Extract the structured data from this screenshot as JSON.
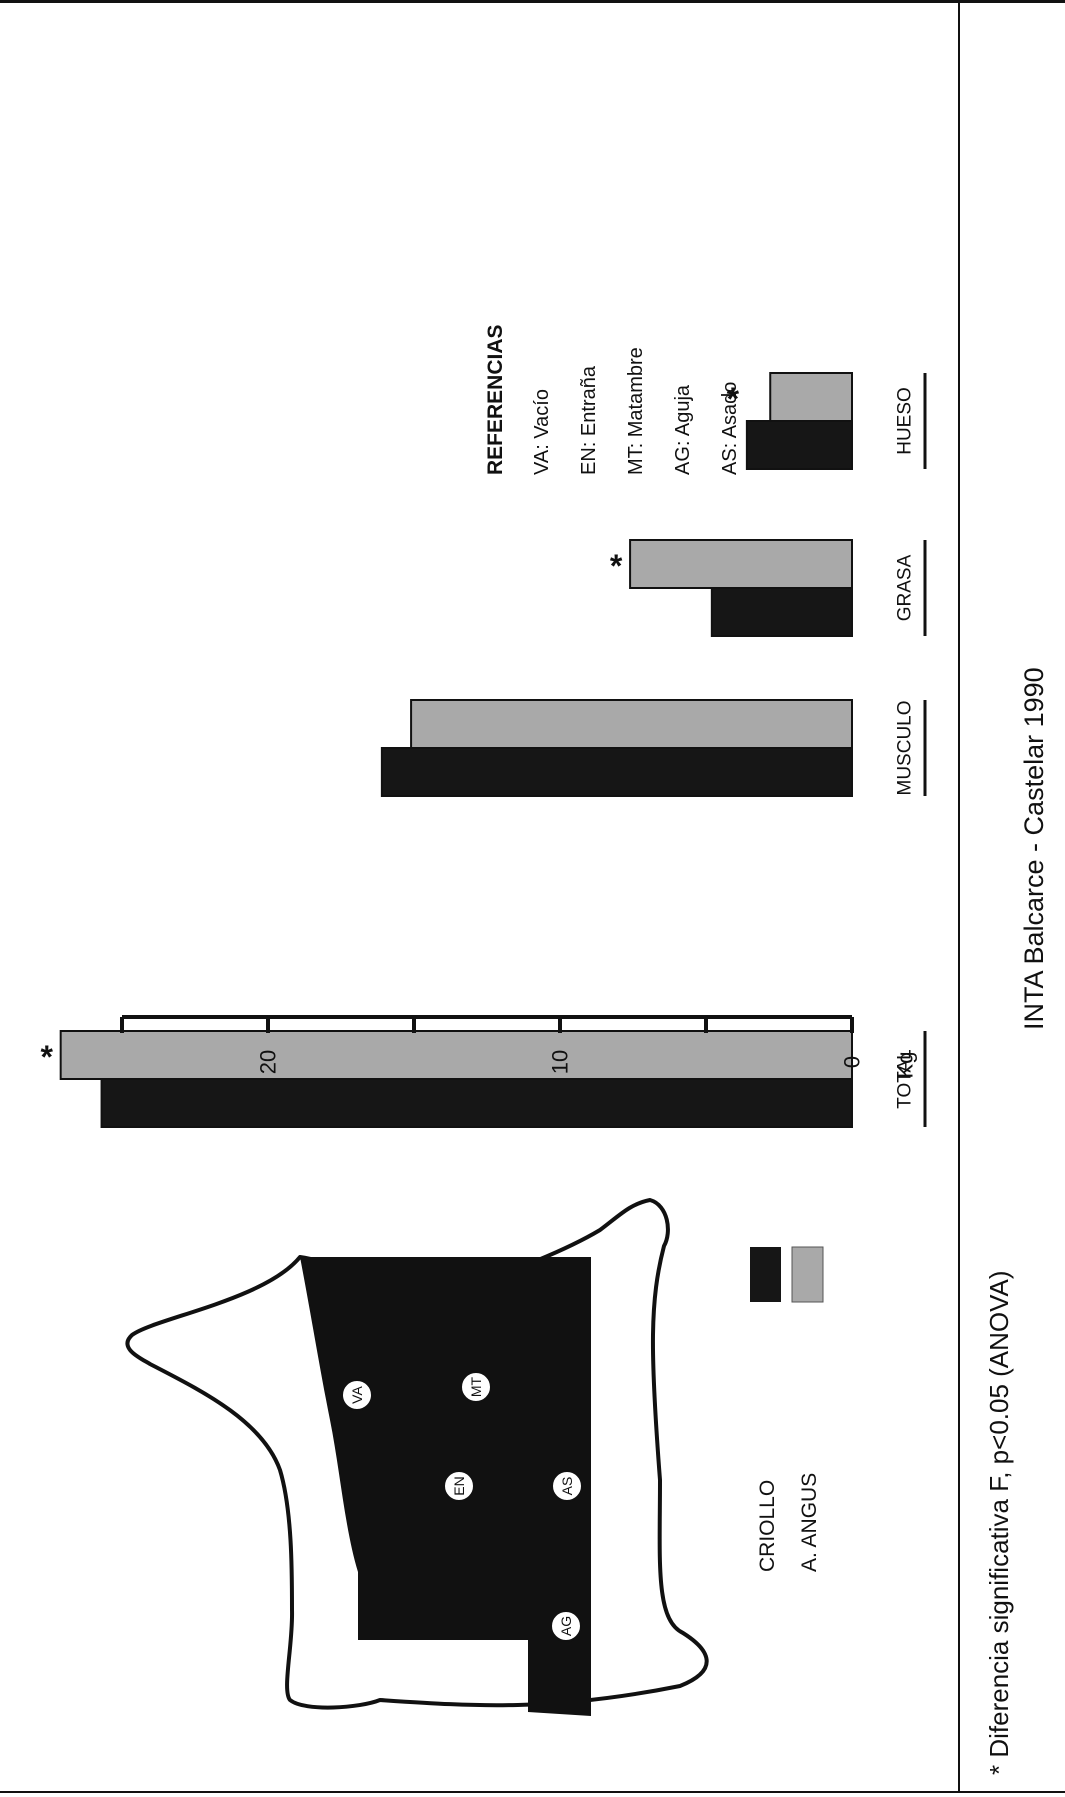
{
  "chart_data": {
    "type": "bar",
    "orientation": "horizontal",
    "categories": [
      "TOTAL",
      "MUSCULO",
      "GRASA",
      "HUESO"
    ],
    "series": [
      {
        "name": "CRIOLLO",
        "color": "#161616",
        "values": [
          25.7,
          16.1,
          4.8,
          3.6
        ]
      },
      {
        "name": "A. ANGUS",
        "color": "#a9a9a9",
        "values": [
          27.1,
          15.1,
          7.6,
          2.8
        ]
      }
    ],
    "significant": [
      true,
      false,
      true,
      true
    ],
    "significance_mark": "*",
    "axis": {
      "label": "Kg",
      "range": [
        0,
        25
      ],
      "major_ticks": [
        0,
        10,
        20
      ],
      "minor_ticks": [
        5,
        15,
        25
      ]
    }
  },
  "references": {
    "title": "REFERENCIAS",
    "items": [
      "VA: Vacío",
      "EN: Entraña",
      "MT: Matambre",
      "AG: Aguja",
      "AS: Asado"
    ]
  },
  "diagram": {
    "labels": [
      "VA",
      "EN",
      "MT",
      "AG",
      "AS"
    ]
  },
  "legend": {
    "items": [
      {
        "label": "CRIOLLO",
        "color": "#161616"
      },
      {
        "label": "A. ANGUS",
        "color": "#a9a9a9"
      }
    ]
  },
  "footnote": "* Diferencia significativa F, p<0.05 (ANOVA)",
  "credit": "INTA Balcarce - Castelar 1990"
}
